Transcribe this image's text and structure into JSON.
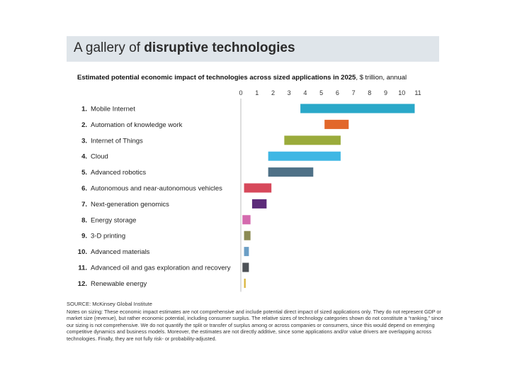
{
  "header": {
    "title_plain": "A gallery of ",
    "title_bold": "disruptive technologies"
  },
  "chart_data": {
    "type": "bar",
    "subtitle_bold": "Estimated potential economic impact of technologies across sized applications in 2025",
    "subtitle_unit": ", $ trillion, annual",
    "xlim": [
      0,
      11
    ],
    "ticks": [
      0,
      1,
      2,
      3,
      4,
      5,
      6,
      7,
      8,
      9,
      10,
      11
    ],
    "grid": false,
    "categories": [
      {
        "num": "1.",
        "label": "Mobile Internet",
        "low": 3.7,
        "high": 10.8,
        "color": "#2aa8c9"
      },
      {
        "num": "2.",
        "label": "Automation of knowledge work",
        "low": 5.2,
        "high": 6.7,
        "color": "#e2672a"
      },
      {
        "num": "3.",
        "label": "Internet of Things",
        "low": 2.7,
        "high": 6.2,
        "color": "#9aab3b"
      },
      {
        "num": "4.",
        "label": "Cloud",
        "low": 1.7,
        "high": 6.2,
        "color": "#3fb7e4"
      },
      {
        "num": "5.",
        "label": "Advanced robotics",
        "low": 1.7,
        "high": 4.5,
        "color": "#4f7187"
      },
      {
        "num": "6.",
        "label": "Autonomous and near-autonomous vehicles",
        "low": 0.2,
        "high": 1.9,
        "color": "#d7495b"
      },
      {
        "num": "7.",
        "label": "Next-generation genomics",
        "low": 0.7,
        "high": 1.6,
        "color": "#5d2c7a"
      },
      {
        "num": "8.",
        "label": "Energy storage",
        "low": 0.1,
        "high": 0.6,
        "color": "#d46aae"
      },
      {
        "num": "9.",
        "label": "3-D printing",
        "low": 0.2,
        "high": 0.6,
        "color": "#8b8a52"
      },
      {
        "num": "10.",
        "label": "Advanced materials",
        "low": 0.2,
        "high": 0.5,
        "color": "#6b9ec5"
      },
      {
        "num": "11.",
        "label": "Advanced oil and gas exploration and recovery",
        "low": 0.1,
        "high": 0.5,
        "color": "#4d5156"
      },
      {
        "num": "12.",
        "label": "Renewable energy",
        "low": 0.2,
        "high": 0.3,
        "color": "#d9b43a"
      }
    ]
  },
  "footer": {
    "source": "SOURCE: McKinsey Global Institute",
    "notes": "Notes on sizing: These economic impact estimates are not comprehensive and include potential direct impact of sized applications only. They do not represent GDP or market size (revenue), but rather economic potential, including consumer surplus. The relative sizes of technology categories shown do not constitute a “ranking,” since our sizing is not comprehensive. We do not quantify the split or transfer of surplus among or across companies or consumers, since this would depend on emerging competitive dynamics and business models. Moreover, the estimates are not directly additive, since some applications and/or value drivers are overlapping across technologies. Finally, they are not fully risk- or probability-adjusted."
  }
}
